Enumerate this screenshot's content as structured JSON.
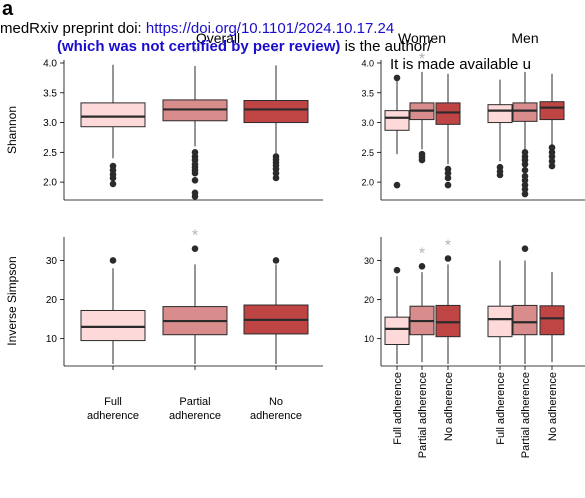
{
  "panel_letter": "a",
  "banner": {
    "line1_prefix": "medRxiv preprint doi: ",
    "line1_link": "https://doi.org/10.1101/2024.10.17.24",
    "line2_bold": "(which was not certified by peer review)",
    "line2_rest": " is the author/",
    "line3": "It is made available u"
  },
  "colors": {
    "full": "#fdd9d9",
    "partial": "#d98c8c",
    "none": "#bf4444",
    "stroke": "#2b2b2b",
    "star": "#b3b3b3",
    "link": "#1a0dcc"
  },
  "chart_data": {
    "type": "boxplot",
    "groups": [
      "Overall",
      "Women",
      "Men"
    ],
    "categories_overall": [
      "Full\nadherence",
      "Partial\nadherence",
      "No\nadherence"
    ],
    "categories_sex": [
      "Full adherence",
      "Partial adherence",
      "No adherence"
    ],
    "series_colors": [
      "#fdd9d9",
      "#d98c8c",
      "#bf4444"
    ],
    "annotation": "*",
    "panels": [
      {
        "group": "Overall",
        "ylabel": "Shannon",
        "ylim": [
          1.7,
          4.05
        ],
        "yticks": [
          "2.0",
          "2.5",
          "3.0",
          "3.5",
          "4.0"
        ],
        "boxes": [
          {
            "cat": "Full adherence",
            "low": 2.4,
            "q1": 2.93,
            "med": 3.1,
            "q3": 3.33,
            "high": 3.97,
            "outliers": [
              2.27,
              2.2,
              2.13,
              2.07,
              1.97
            ],
            "star": false
          },
          {
            "cat": "Partial adherence",
            "low": 2.6,
            "q1": 3.03,
            "med": 3.22,
            "q3": 3.38,
            "high": 3.95,
            "outliers": [
              2.5,
              2.43,
              2.37,
              2.3,
              2.25,
              2.2,
              2.15,
              2.03,
              1.82,
              1.76
            ],
            "star": true
          },
          {
            "cat": "No adherence",
            "low": 2.47,
            "q1": 3.0,
            "med": 3.22,
            "q3": 3.37,
            "high": 3.96,
            "outliers": [
              2.43,
              2.38,
              2.33,
              2.28,
              2.22,
              2.15,
              2.07
            ],
            "star": true
          }
        ]
      },
      {
        "group": "Women",
        "ylabel": "",
        "ylim": [
          1.7,
          4.05
        ],
        "yticks": [
          "2.0",
          "2.5",
          "3.0",
          "3.5",
          "4.0"
        ],
        "boxes": [
          {
            "cat": "Full adherence",
            "low": 2.47,
            "q1": 2.87,
            "med": 3.08,
            "q3": 3.2,
            "high": 3.72,
            "outliers": [
              3.75,
              1.95
            ],
            "star": false
          },
          {
            "cat": "Partial adherence",
            "low": 2.55,
            "q1": 3.05,
            "med": 3.2,
            "q3": 3.33,
            "high": 3.85,
            "outliers": [
              2.47,
              2.42,
              2.37
            ],
            "star": true
          },
          {
            "cat": "No adherence",
            "low": 2.3,
            "q1": 2.97,
            "med": 3.17,
            "q3": 3.33,
            "high": 3.82,
            "outliers": [
              2.22,
              2.15,
              2.07,
              1.95
            ],
            "star": false
          },
          {
            "cat": "Full adherence",
            "low": 2.35,
            "q1": 3.0,
            "med": 3.2,
            "q3": 3.3,
            "high": 3.72,
            "outliers": [
              2.25,
              2.18,
              2.12
            ],
            "star": false
          },
          {
            "cat": "Partial adherence",
            "low": 2.55,
            "q1": 3.02,
            "med": 3.2,
            "q3": 3.33,
            "high": 3.85,
            "outliers": [
              2.5,
              2.43,
              2.37,
              2.3,
              2.2,
              2.1,
              2.03,
              1.95,
              1.88,
              1.8
            ],
            "star": false
          },
          {
            "cat": "No adherence",
            "low": 2.62,
            "q1": 3.05,
            "med": 3.25,
            "q3": 3.35,
            "high": 3.82,
            "outliers": [
              2.58,
              2.5,
              2.43,
              2.35,
              2.27
            ],
            "star": false
          }
        ]
      },
      {
        "group": "Overall",
        "ylabel": "Inverse Simpson",
        "ylim": [
          3,
          36
        ],
        "yticks": [
          "10",
          "20",
          "30"
        ],
        "boxes": [
          {
            "cat": "Full adherence",
            "low": 3.5,
            "q1": 9.5,
            "med": 13,
            "q3": 17.2,
            "high": 28,
            "outliers": [
              30
            ],
            "star": false
          },
          {
            "cat": "Partial adherence",
            "low": 3.5,
            "q1": 11,
            "med": 14.5,
            "q3": 18.2,
            "high": 29,
            "outliers": [
              33
            ],
            "star": true
          },
          {
            "cat": "No adherence",
            "low": 3.5,
            "q1": 11.2,
            "med": 14.8,
            "q3": 18.6,
            "high": 29,
            "outliers": [
              30
            ],
            "star": false
          }
        ]
      },
      {
        "group": "Women",
        "ylabel": "",
        "ylim": [
          3,
          36
        ],
        "yticks": [
          "10",
          "20",
          "30"
        ],
        "boxes": [
          {
            "cat": "Full adherence",
            "low": 3.5,
            "q1": 8.5,
            "med": 12.5,
            "q3": 15.5,
            "high": 26,
            "outliers": [
              27.5
            ],
            "star": false
          },
          {
            "cat": "Partial adherence",
            "low": 4,
            "q1": 11,
            "med": 14.5,
            "q3": 18.3,
            "high": 27,
            "outliers": [
              28.5
            ],
            "star": true
          },
          {
            "cat": "No adherence",
            "low": 3.5,
            "q1": 10.5,
            "med": 14.2,
            "q3": 18.5,
            "high": 29,
            "outliers": [
              30.5
            ],
            "star": true
          },
          {
            "cat": "Full adherence",
            "low": 3.5,
            "q1": 10.5,
            "med": 15,
            "q3": 18.3,
            "high": 30,
            "outliers": [],
            "star": false
          },
          {
            "cat": "Partial adherence",
            "low": 3.5,
            "q1": 11,
            "med": 14.2,
            "q3": 18.5,
            "high": 30,
            "outliers": [
              33
            ],
            "star": false
          },
          {
            "cat": "No adherence",
            "low": 4,
            "q1": 11,
            "med": 15.2,
            "q3": 18.4,
            "high": 27,
            "outliers": [],
            "star": false
          }
        ]
      }
    ]
  }
}
